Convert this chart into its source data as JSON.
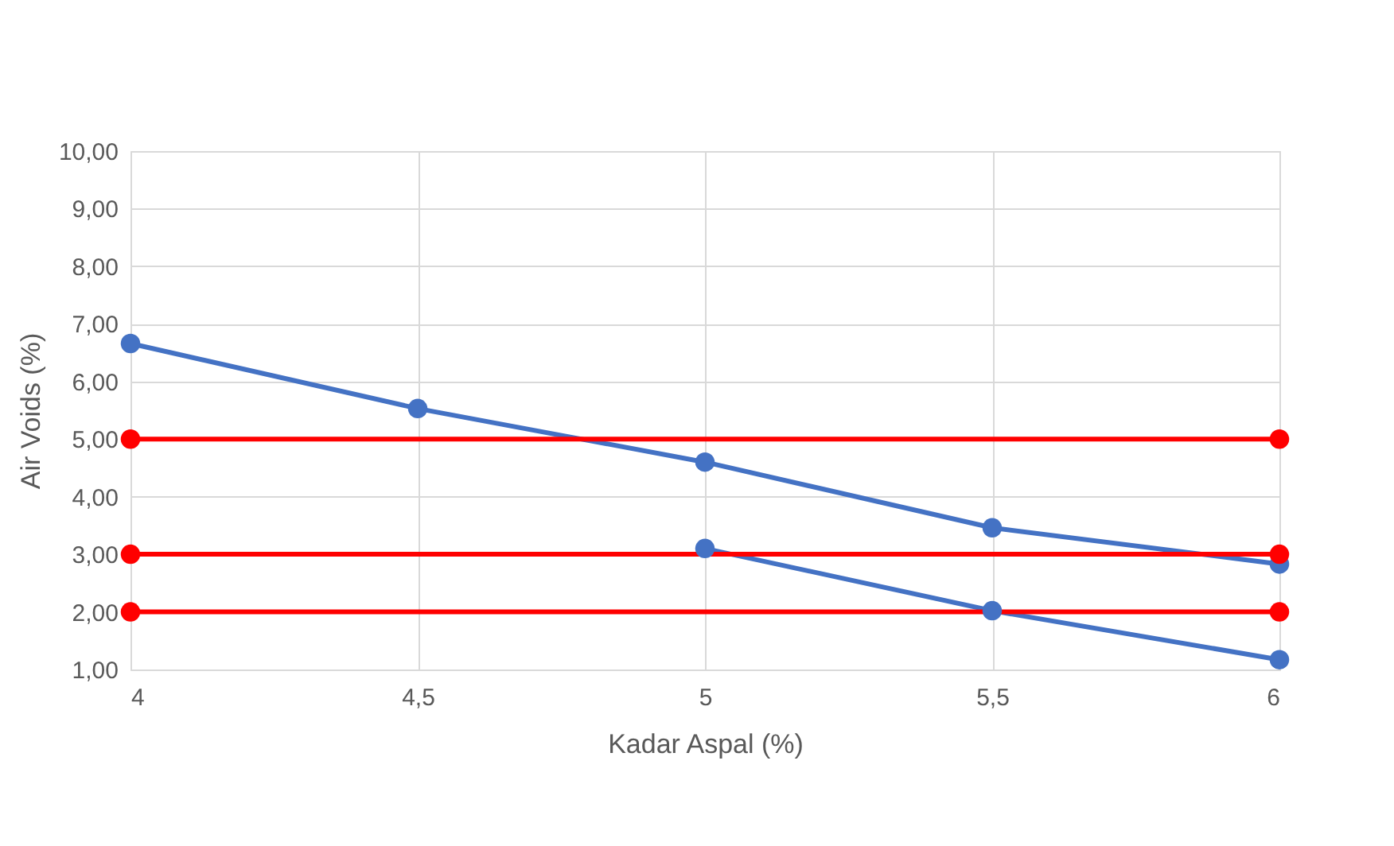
{
  "chart_data": {
    "type": "line",
    "xlabel": "Kadar Aspal (%)",
    "ylabel": "Air Voids (%)",
    "series": [
      {
        "color": "#4472c4",
        "x": [
          4,
          4.5,
          5,
          5.5,
          6
        ],
        "values": [
          6.66,
          5.53,
          4.6,
          3.46,
          2.83
        ]
      },
      {
        "color": "#4472c4",
        "x": [
          5,
          5.5,
          6
        ],
        "values": [
          3.1,
          2.02,
          1.17
        ]
      },
      {
        "color": "#ff0000",
        "x": [
          4,
          6
        ],
        "values": [
          5,
          5
        ]
      },
      {
        "color": "#ff0000",
        "x": [
          4,
          6
        ],
        "values": [
          3,
          3
        ]
      },
      {
        "color": "#ff0000",
        "x": [
          4,
          6
        ],
        "values": [
          2,
          2
        ]
      }
    ],
    "xlim": [
      4,
      6
    ],
    "xticks": [
      4,
      {
        "value": 4.5,
        "label": "4,5"
      },
      5,
      {
        "value": 5.5,
        "label": "5,5"
      },
      6
    ],
    "ylim": [
      1,
      10
    ],
    "yticks": [
      {
        "value": 1,
        "label": "1,00"
      },
      {
        "value": 2,
        "label": "2,00"
      },
      {
        "value": 3,
        "label": "3,00"
      },
      {
        "value": 4,
        "label": "4,00"
      },
      {
        "value": 5,
        "label": "5,00"
      },
      {
        "value": 6,
        "label": "6,00"
      },
      {
        "value": 7,
        "label": "7,00"
      },
      {
        "value": 8,
        "label": "8,00"
      },
      {
        "value": 9,
        "label": "9,00"
      },
      {
        "value": 10,
        "label": "10,00"
      }
    ],
    "grid": true,
    "marker": "circle",
    "line_style": "solid",
    "legend": false
  }
}
